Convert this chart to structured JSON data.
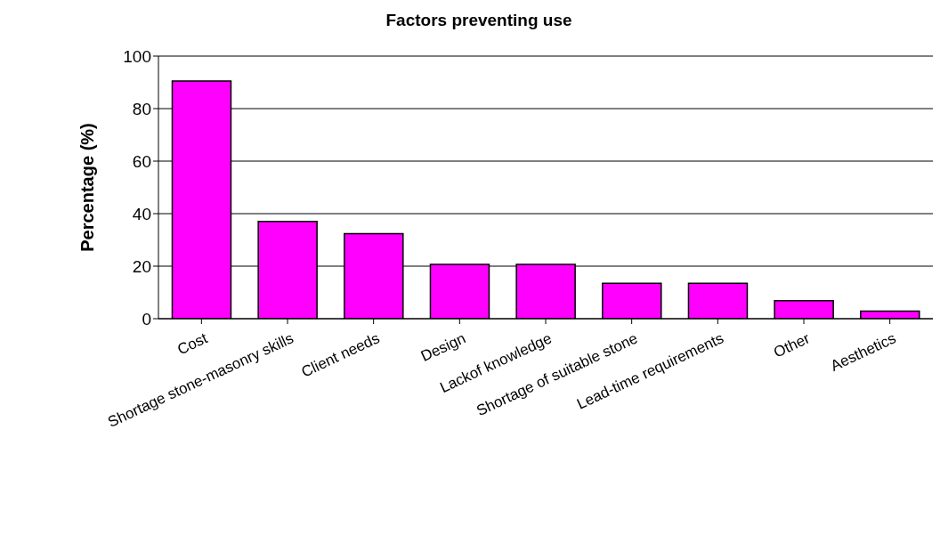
{
  "chart_data": {
    "type": "bar",
    "title": "Factors preventing use",
    "ylabel": "Percentage (%)",
    "categories": [
      "Cost",
      "Shortage stone-masonry skills",
      "Client needs",
      "Design",
      "Lackof knowledge",
      "Shortage of suitable stone",
      "Lead-time requirements",
      "Other",
      "Aesthetics"
    ],
    "values": [
      90.5,
      37,
      32.4,
      20.7,
      20.7,
      13.5,
      13.5,
      6.9,
      2.9
    ],
    "color": "#ff00ff",
    "ylim": [
      0,
      100
    ],
    "yticks": [
      0,
      20,
      40,
      60,
      80,
      100
    ],
    "grid": "y"
  }
}
